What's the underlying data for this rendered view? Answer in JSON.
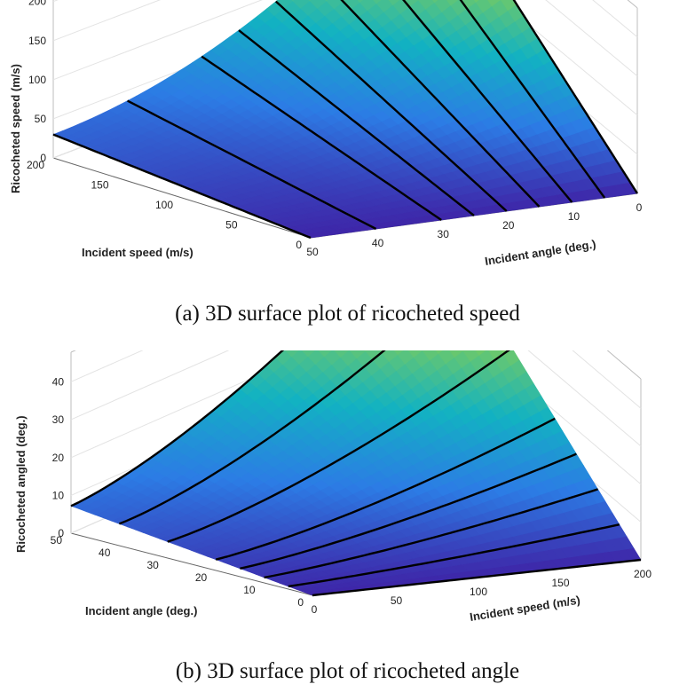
{
  "chart_data": [
    {
      "type": "surface3d",
      "caption": "(a) 3D surface plot of ricocheted speed",
      "x_axis": {
        "label": "Incident speed (m/s)",
        "ticks": [
          "200",
          "150",
          "100",
          "50",
          "0"
        ],
        "range": [
          0,
          200
        ]
      },
      "y_axis": {
        "label": "Incident angle (deg.)",
        "ticks": [
          "50",
          "40",
          "30",
          "20",
          "10",
          "0"
        ],
        "range": [
          0,
          50
        ]
      },
      "z_axis": {
        "label": "Ricocheted speed (m/s)",
        "ticks": [
          "0",
          "50",
          "100",
          "150",
          "200"
        ],
        "range": [
          0,
          200
        ]
      },
      "corners": {
        "speed0_angle50": 0,
        "speed0_angle0": 0,
        "speed200_angle50": 30,
        "speed200_angle0": 200
      },
      "lines_at_angle_deg": [
        0,
        5,
        10,
        15,
        20,
        25,
        30,
        40,
        50
      ],
      "colormap": [
        "#3e26a8",
        "#2c7ce5",
        "#12b2c2",
        "#6fc968",
        "#f6b93c",
        "#f9fb0e"
      ]
    },
    {
      "type": "surface3d",
      "caption": "(b) 3D surface plot of ricocheted angle",
      "x_axis": {
        "label": "Incident angle (deg.)",
        "ticks": [
          "50",
          "40",
          "30",
          "20",
          "10",
          "0"
        ],
        "range": [
          0,
          50
        ]
      },
      "y_axis": {
        "label": "Incident speed (m/s)",
        "ticks": [
          "0",
          "50",
          "100",
          "150",
          "200"
        ],
        "range": [
          0,
          200
        ]
      },
      "z_axis": {
        "label": "Ricocheted angled (deg.)",
        "ticks": [
          "0",
          "10",
          "20",
          "30",
          "40"
        ],
        "range": [
          0,
          45
        ]
      },
      "corners": {
        "angle50_speed0": 7,
        "angle0_speed0": 0,
        "angle50_speed200": 43,
        "angle0_speed200": 0
      },
      "lines_at_angle_deg": [
        0,
        5,
        10,
        15,
        20,
        30,
        40,
        50
      ],
      "colormap": [
        "#3e26a8",
        "#2c7ce5",
        "#12b2c2",
        "#6fc968",
        "#f6b93c",
        "#f9fb0e"
      ]
    }
  ]
}
